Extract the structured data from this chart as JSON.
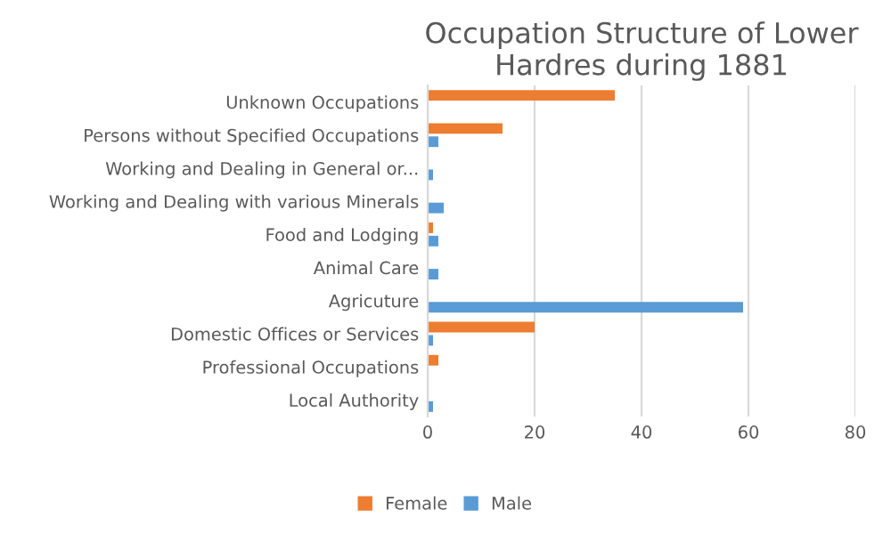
{
  "chart_data": {
    "type": "bar",
    "orientation": "horizontal",
    "title": "Occupation Structure of Lower Hardres during 1881",
    "categories": [
      "Unknown Occupations",
      "Persons without Specified Occupations",
      "Working and Dealing in General or...",
      "Working and Dealing with various Minerals",
      "Food and Lodging",
      "Animal Care",
      "Agricuture",
      "Domestic Offices or Services",
      "Professional Occupations",
      "Local Authority"
    ],
    "series": [
      {
        "name": "Female",
        "color": "#ed7d31",
        "values": [
          35,
          14,
          0,
          0,
          1,
          0,
          0,
          20,
          2,
          0
        ]
      },
      {
        "name": "Male",
        "color": "#5b9bd5",
        "values": [
          0,
          2,
          1,
          3,
          2,
          2,
          59,
          1,
          0,
          1
        ]
      }
    ],
    "xlim": [
      0,
      80
    ],
    "xticks": [
      0,
      20,
      40,
      60,
      80
    ],
    "grid": "x",
    "legend": "bottom"
  }
}
